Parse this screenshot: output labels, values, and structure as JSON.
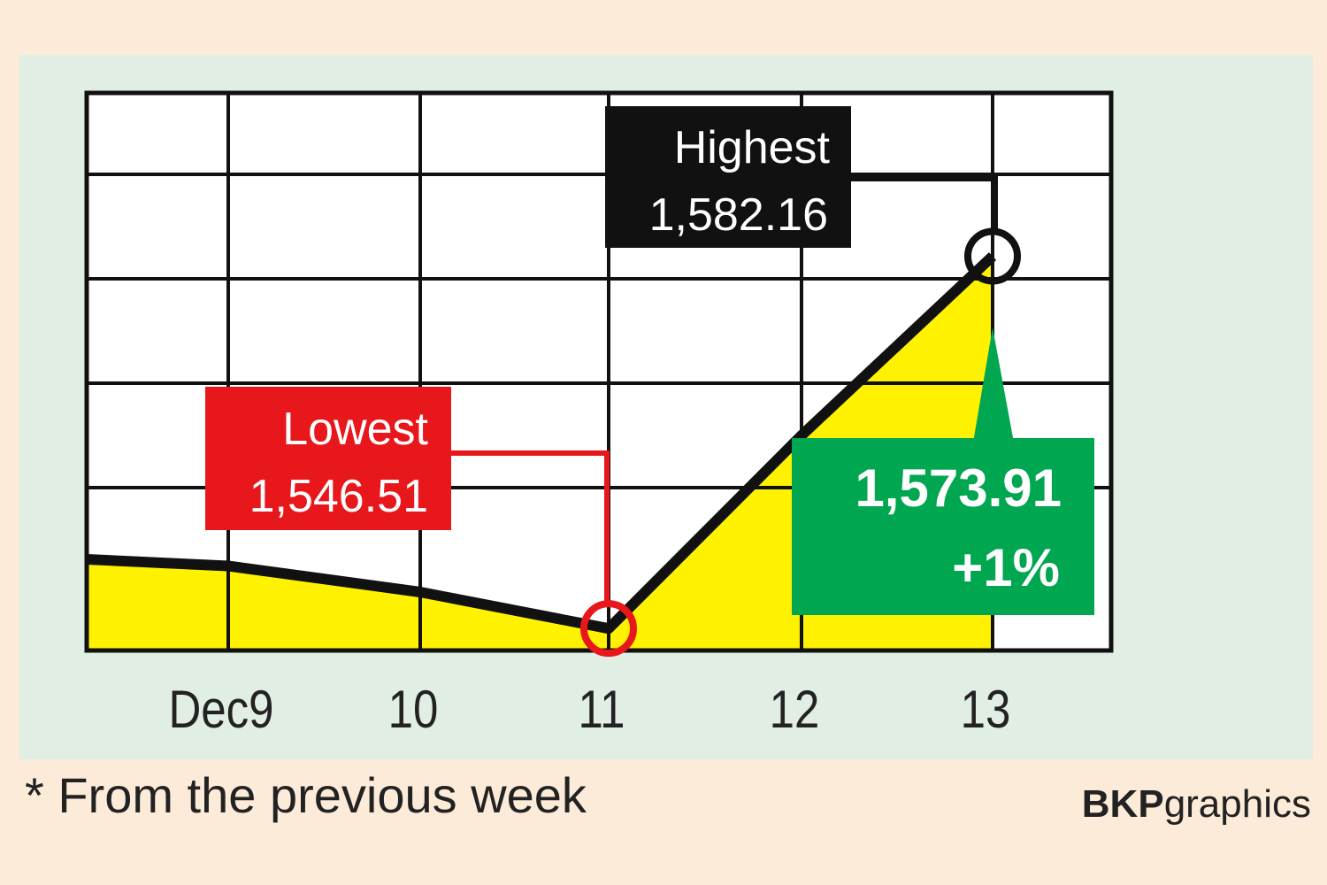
{
  "chart_data": {
    "type": "area",
    "x": [
      "Dec9",
      "10",
      "11",
      "12",
      "13"
    ],
    "values": [
      1552.5,
      1550.0,
      1546.51,
      1565.0,
      1582.16
    ],
    "ylim": [
      1540,
      1598
    ],
    "yticks": [
      "1,560",
      "1,570",
      "1,580",
      "1,590"
    ],
    "ytick_values": [
      1560,
      1570,
      1580,
      1590
    ],
    "grid": true,
    "colors": {
      "line": "#111111",
      "area": "#fff200",
      "plot_bg": "#ffffff",
      "panel_bg": "#e0eee4"
    },
    "annotations": {
      "lowest": {
        "title": "Lowest",
        "value": "1,546.51",
        "x_index": 2,
        "color": "#e8171c"
      },
      "highest": {
        "title": "Highest",
        "value": "1,582.16",
        "x_index": 4,
        "color": "#111111"
      },
      "close": {
        "value": "1,573.91",
        "change": "+1%",
        "color": "#00a650"
      }
    }
  },
  "footnote": "* From the previous week",
  "credit": {
    "bold": "BKP",
    "regular": "graphics"
  }
}
